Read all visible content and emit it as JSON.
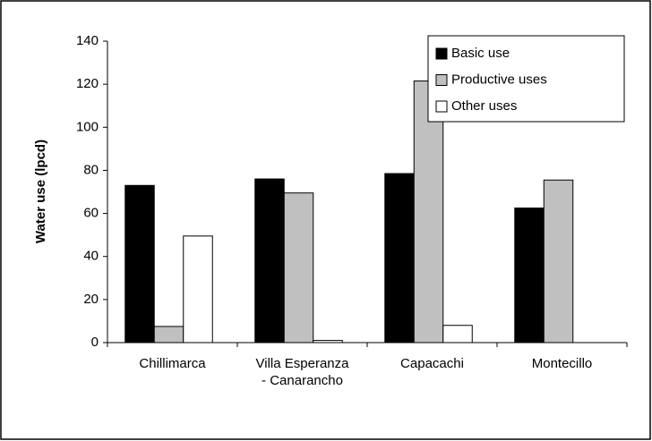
{
  "chart_data": {
    "type": "bar",
    "y_label": "Water use (lpcd)",
    "categories": [
      "Chillimarca",
      "Villa Esperanza - Canarancho",
      "Capacachi",
      "Montecillo"
    ],
    "series": [
      {
        "name": "Basic use",
        "color": "#000000",
        "values": [
          73,
          76,
          78.5,
          62.5
        ]
      },
      {
        "name": "Productive uses",
        "color": "#c0c0c0",
        "values": [
          7.5,
          69.5,
          121.5,
          75.5
        ]
      },
      {
        "name": "Other uses",
        "color": "#ffffff",
        "values": [
          49.5,
          1,
          8,
          0
        ]
      }
    ],
    "ylim": [
      0,
      140
    ],
    "yticks": [
      0,
      20,
      40,
      60,
      80,
      100,
      120,
      140
    ],
    "legend": "upper right",
    "grid": false
  }
}
